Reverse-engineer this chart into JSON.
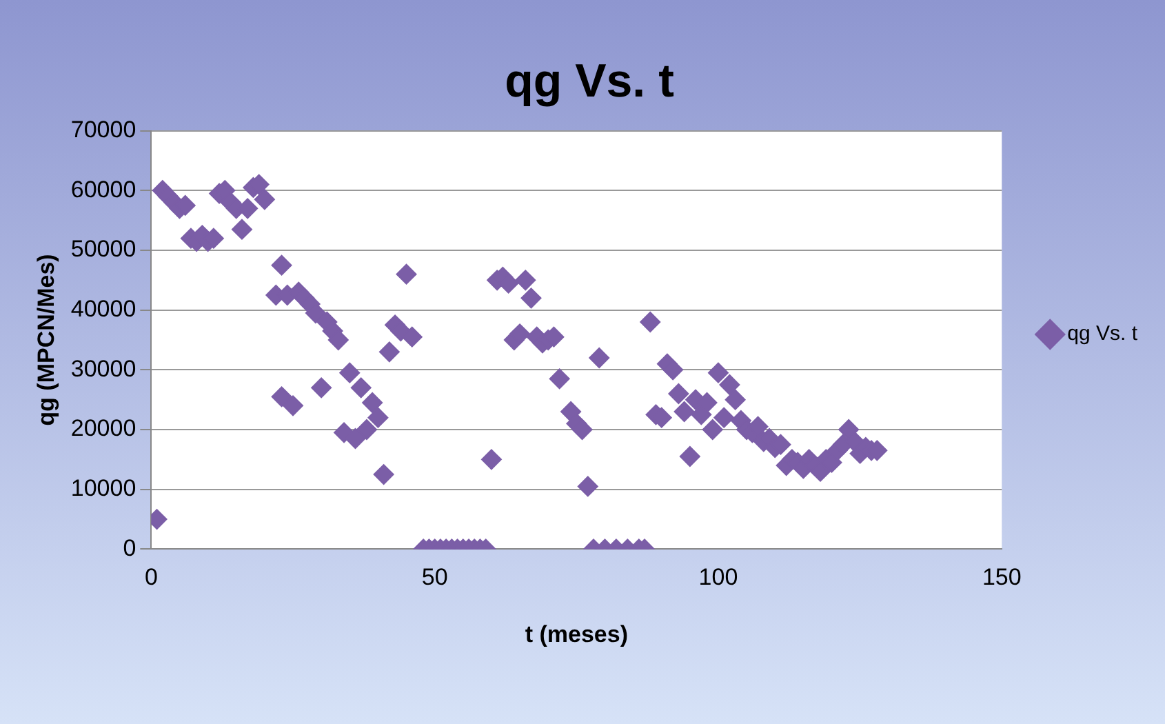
{
  "chart_data": {
    "type": "scatter",
    "title": "qg Vs. t",
    "xlabel": "t (meses)",
    "ylabel": "qg (MPCN/Mes)",
    "xlim": [
      0,
      150
    ],
    "xticks": [
      0,
      50,
      100,
      150
    ],
    "ylim": [
      0,
      70000
    ],
    "yticks": [
      0,
      10000,
      20000,
      30000,
      40000,
      50000,
      60000,
      70000
    ],
    "grid": "y",
    "legend": "right",
    "marker": "diamond",
    "series": [
      {
        "name": "qg Vs. t",
        "color": "#7b5ea7",
        "x": [
          1,
          2,
          3,
          4,
          5,
          6,
          7,
          8,
          9,
          10,
          11,
          12,
          13,
          14,
          15,
          16,
          17,
          18,
          19,
          20,
          22,
          23,
          23,
          24,
          25,
          26,
          27,
          28,
          29,
          30,
          31,
          32,
          33,
          34,
          35,
          36,
          37,
          38,
          39,
          40,
          41,
          42,
          43,
          44,
          45,
          46,
          48,
          49,
          50,
          51,
          52,
          53,
          54,
          55,
          56,
          57,
          58,
          59,
          60,
          61,
          62,
          63,
          64,
          65,
          66,
          67,
          68,
          69,
          70,
          71,
          72,
          74,
          75,
          76,
          77,
          78,
          79,
          80,
          82,
          84,
          86,
          87,
          88,
          89,
          90,
          91,
          92,
          93,
          94,
          95,
          96,
          97,
          98,
          99,
          100,
          101,
          102,
          103,
          104,
          105,
          106,
          107,
          108,
          109,
          110,
          111,
          112,
          113,
          114,
          115,
          116,
          117,
          118,
          119,
          120,
          121,
          122,
          123,
          124,
          125,
          126,
          127,
          128
        ],
        "values": [
          5000,
          60000,
          59000,
          58000,
          57000,
          57500,
          52000,
          51500,
          52500,
          51500,
          52000,
          59500,
          60000,
          58000,
          57000,
          53500,
          57000,
          60500,
          61000,
          58500,
          42500,
          47500,
          25500,
          42500,
          24000,
          43000,
          42000,
          41000,
          39500,
          27000,
          38000,
          36500,
          35000,
          19500,
          29500,
          18500,
          27000,
          20000,
          24500,
          22000,
          12500,
          33000,
          37500,
          36500,
          46000,
          35500,
          0,
          0,
          0,
          0,
          0,
          0,
          0,
          0,
          0,
          0,
          0,
          0,
          15000,
          45000,
          45500,
          44500,
          35000,
          36000,
          45000,
          42000,
          35500,
          34500,
          35000,
          35500,
          28500,
          23000,
          21000,
          20000,
          10500,
          0,
          32000,
          0,
          0,
          0,
          0,
          0,
          38000,
          22500,
          22000,
          31000,
          30000,
          26000,
          23000,
          15500,
          25000,
          22500,
          24500,
          20000,
          29500,
          22000,
          27500,
          25000,
          21500,
          20000,
          19500,
          20500,
          18000,
          18500,
          17000,
          17500,
          14000,
          15000,
          14500,
          13500,
          15000,
          14000,
          13000,
          15000,
          14500,
          16500,
          17500,
          20000,
          18000,
          16000,
          17000,
          16500,
          16500
        ]
      }
    ]
  }
}
